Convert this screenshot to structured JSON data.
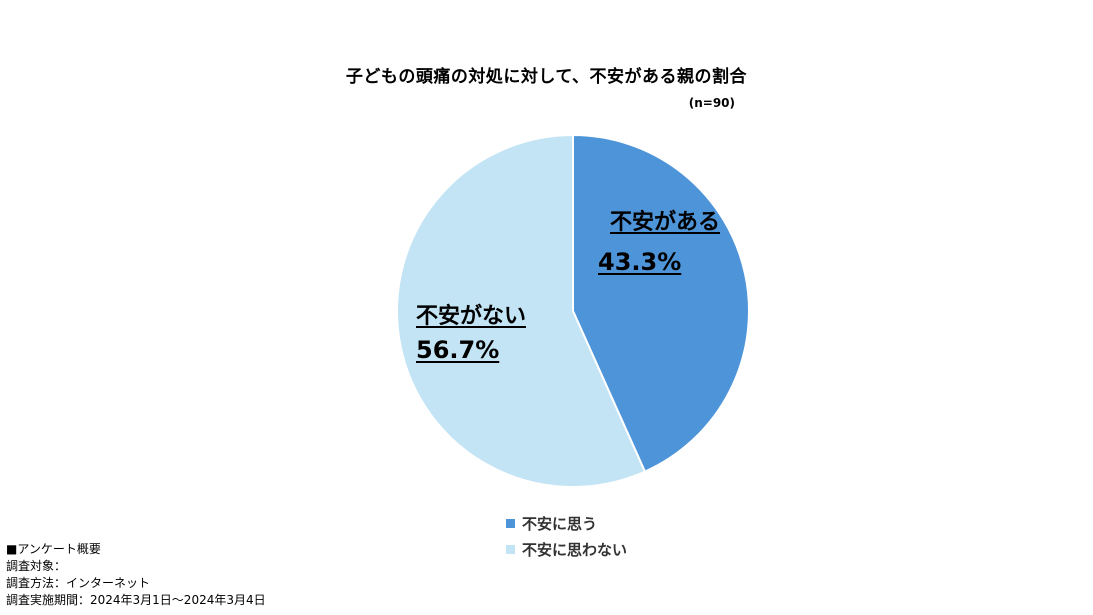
{
  "chart_data": {
    "type": "pie",
    "title": "子どもの頭痛の対処に対して、不安がある親の割合",
    "sample_size": "(n=90)",
    "slices": [
      {
        "label": "不安がある",
        "value": 43.3,
        "value_label": "43.3%",
        "legend": "不安に思う",
        "color": "#4e94d8"
      },
      {
        "label": "不安がない",
        "value": 56.7,
        "value_label": "56.7%",
        "legend": "不安に思わない",
        "color": "#c3e4f4"
      }
    ],
    "legend_placement": "bottom"
  },
  "survey_notes": {
    "heading": "■アンケート概要",
    "target": "調査対象：",
    "method": "調査方法：インターネット",
    "period": "調査実施期間：2024年3月1日～2024年3月4日"
  }
}
